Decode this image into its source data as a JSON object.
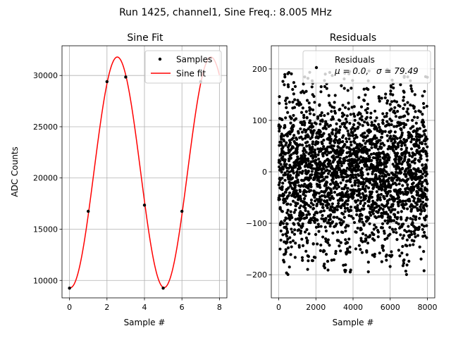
{
  "figure_title": "Run 1425, channel1, Sine Freq.: 8.005 MHz",
  "chart_data": [
    {
      "type": "line",
      "title": "Sine Fit",
      "xlabel": "Sample #",
      "ylabel": "ADC Counts",
      "xlim": [
        -0.4,
        8.4
      ],
      "ylim": [
        8300,
        32900
      ],
      "xticks": [
        0,
        2,
        4,
        6,
        8
      ],
      "xtick_labels": [
        "0",
        "2",
        "4",
        "6",
        "8"
      ],
      "yticks": [
        10000,
        15000,
        20000,
        25000,
        30000
      ],
      "ytick_labels": [
        "10000",
        "15000",
        "20000",
        "25000",
        "30000"
      ],
      "grid": true,
      "legend": "top-right",
      "series": [
        {
          "name": "Samples",
          "kind": "scatter",
          "color": "#000000",
          "x": [
            0,
            1,
            2,
            3,
            4,
            5,
            6,
            7
          ],
          "y": [
            9250,
            16750,
            29400,
            29850,
            17350,
            9250,
            16750,
            29400
          ]
        },
        {
          "name": "Sine fit",
          "kind": "line",
          "color": "#ff0000",
          "model": {
            "offset": 20550,
            "amplitude": 11250,
            "peak_x": 2.55,
            "period_samples": 4.998
          },
          "x_range": [
            0,
            8
          ]
        }
      ]
    },
    {
      "type": "scatter",
      "title": "Residuals",
      "xlabel": "Sample #",
      "xlim": [
        -400,
        8400
      ],
      "ylim": [
        -245,
        245
      ],
      "xticks": [
        0,
        2000,
        4000,
        6000,
        8000
      ],
      "xtick_labels": [
        "0",
        "2000",
        "4000",
        "6000",
        "8000"
      ],
      "yticks": [
        -200,
        -100,
        0,
        100,
        200
      ],
      "ytick_labels": [
        "−200",
        "−100",
        "0",
        "100",
        "200"
      ],
      "grid": true,
      "legend": "top-right",
      "series": [
        {
          "name": "Residuals",
          "color": "#000000",
          "n_points": 8000,
          "mean": 0.0,
          "std": 79.49,
          "band_period_samples": 1062,
          "band_max_abs": 200,
          "band_min_abs": 140
        }
      ],
      "legend_stats": {
        "mu_label": "μ = 0.0,",
        "sigma_label": "σ = 79.49"
      }
    }
  ]
}
